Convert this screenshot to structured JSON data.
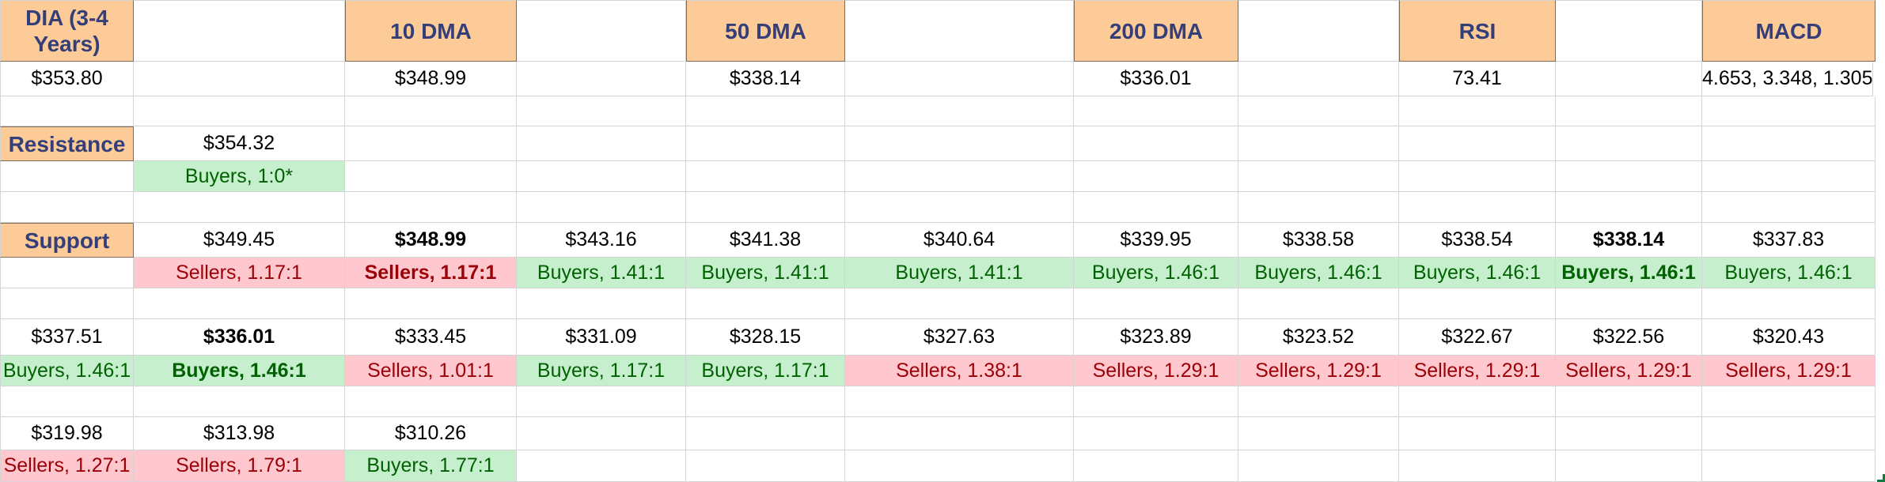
{
  "header": {
    "ticker": "DIA (3-4 Years)",
    "dma10": "10 DMA",
    "dma50": "50 DMA",
    "dma200": "200 DMA",
    "rsi": "RSI",
    "macd": "MACD"
  },
  "values": {
    "price": "$353.80",
    "dma10": "$348.99",
    "dma50": "$338.14",
    "dma200": "$336.01",
    "rsi": "73.41",
    "macd": "4.653, 3.348, 1.305"
  },
  "resistance": {
    "label": "Resistance",
    "levels": [
      {
        "price": "$354.32",
        "ratio": "Buyers, 1:0*",
        "side": "buyers",
        "bold": false
      }
    ]
  },
  "support": {
    "label": "Support",
    "rows": [
      [
        {
          "price": "$349.45",
          "ratio": "Sellers, 1.17:1",
          "side": "sellers",
          "bold": false
        },
        {
          "price": "$348.99",
          "ratio": "Sellers, 1.17:1",
          "side": "sellers",
          "bold": true
        },
        {
          "price": "$343.16",
          "ratio": "Buyers, 1.41:1",
          "side": "buyers",
          "bold": false
        },
        {
          "price": "$341.38",
          "ratio": "Buyers, 1.41:1",
          "side": "buyers",
          "bold": false
        },
        {
          "price": "$340.64",
          "ratio": "Buyers, 1.41:1",
          "side": "buyers",
          "bold": false
        },
        {
          "price": "$339.95",
          "ratio": "Buyers, 1.46:1",
          "side": "buyers",
          "bold": false
        },
        {
          "price": "$338.58",
          "ratio": "Buyers, 1.46:1",
          "side": "buyers",
          "bold": false
        },
        {
          "price": "$338.54",
          "ratio": "Buyers, 1.46:1",
          "side": "buyers",
          "bold": false
        },
        {
          "price": "$338.14",
          "ratio": "Buyers, 1.46:1",
          "side": "buyers",
          "bold": true
        },
        {
          "price": "$337.83",
          "ratio": "Buyers, 1.46:1",
          "side": "buyers",
          "bold": false
        }
      ],
      [
        {
          "price": "$337.51",
          "ratio": "Buyers, 1.46:1",
          "side": "buyers",
          "bold": false
        },
        {
          "price": "$336.01",
          "ratio": "Buyers, 1.46:1",
          "side": "buyers",
          "bold": true
        },
        {
          "price": "$333.45",
          "ratio": "Sellers, 1.01:1",
          "side": "sellers",
          "bold": false
        },
        {
          "price": "$331.09",
          "ratio": "Buyers, 1.17:1",
          "side": "buyers",
          "bold": false
        },
        {
          "price": "$328.15",
          "ratio": "Buyers, 1.17:1",
          "side": "buyers",
          "bold": false
        },
        {
          "price": "$327.63",
          "ratio": "Sellers, 1.38:1",
          "side": "sellers",
          "bold": false
        },
        {
          "price": "$323.89",
          "ratio": "Sellers, 1.29:1",
          "side": "sellers",
          "bold": false
        },
        {
          "price": "$323.52",
          "ratio": "Sellers, 1.29:1",
          "side": "sellers",
          "bold": false
        },
        {
          "price": "$322.67",
          "ratio": "Sellers, 1.29:1",
          "side": "sellers",
          "bold": false
        },
        {
          "price": "$322.56",
          "ratio": "Sellers, 1.29:1",
          "side": "sellers",
          "bold": false
        },
        {
          "price": "$320.43",
          "ratio": "Sellers, 1.29:1",
          "side": "sellers",
          "bold": false
        }
      ],
      [
        {
          "price": "$319.98",
          "ratio": "Sellers, 1.27:1",
          "side": "sellers",
          "bold": false
        },
        {
          "price": "$313.98",
          "ratio": "Sellers, 1.79:1",
          "side": "sellers",
          "bold": false
        },
        {
          "price": "$310.26",
          "ratio": "Buyers, 1.77:1",
          "side": "buyers",
          "bold": false
        }
      ]
    ]
  },
  "colors": {
    "header_fill": "#fccb97",
    "header_text": "#343e78",
    "buyers_fill": "#c6efce",
    "buyers_text": "#006100",
    "sellers_fill": "#ffc7ce",
    "sellers_text": "#9c0006"
  }
}
